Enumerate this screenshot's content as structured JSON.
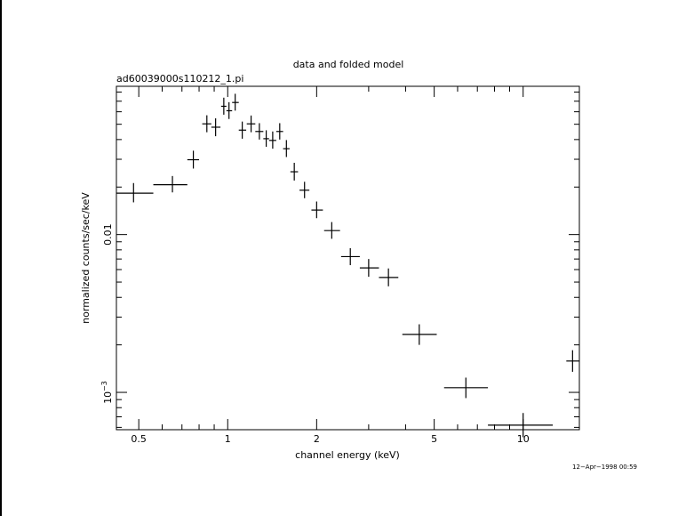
{
  "chart_data": {
    "type": "scatter",
    "title": "data and folded model",
    "subtitle": "ad60039000s110212_1.pi",
    "xlabel": "channel energy (keV)",
    "ylabel": "normalized counts/sec/keV",
    "x_scale": "log",
    "y_scale": "log",
    "xlim": [
      0.42,
      15.5
    ],
    "ylim": [
      0.00058,
      0.087
    ],
    "x_ticklabels": [
      "0.5",
      "1",
      "2",
      "5",
      "10"
    ],
    "x_tickvalues": [
      0.5,
      1,
      2,
      5,
      10
    ],
    "y_ticklabels": [
      {
        "base": "0.01",
        "exp": "",
        "value": 0.01
      },
      {
        "base": "10",
        "exp": "−3",
        "value": 0.001
      }
    ],
    "points": [
      {
        "x": 0.48,
        "xlo": 0.42,
        "xhi": 0.56,
        "y": 0.0183,
        "ylo": 0.016,
        "yhi": 0.0212
      },
      {
        "x": 0.65,
        "xlo": 0.56,
        "xhi": 0.73,
        "y": 0.0207,
        "ylo": 0.0185,
        "yhi": 0.0235
      },
      {
        "x": 0.765,
        "xlo": 0.73,
        "xhi": 0.8,
        "y": 0.0298,
        "ylo": 0.0262,
        "yhi": 0.034
      },
      {
        "x": 0.85,
        "xlo": 0.82,
        "xhi": 0.88,
        "y": 0.0503,
        "ylo": 0.0445,
        "yhi": 0.057
      },
      {
        "x": 0.91,
        "xlo": 0.88,
        "xhi": 0.945,
        "y": 0.0479,
        "ylo": 0.042,
        "yhi": 0.0545
      },
      {
        "x": 0.97,
        "xlo": 0.95,
        "xhi": 0.99,
        "y": 0.065,
        "ylo": 0.0575,
        "yhi": 0.0737
      },
      {
        "x": 1.01,
        "xlo": 0.99,
        "xhi": 1.035,
        "y": 0.0609,
        "ylo": 0.054,
        "yhi": 0.069
      },
      {
        "x": 1.06,
        "xlo": 1.035,
        "xhi": 1.09,
        "y": 0.0687,
        "ylo": 0.061,
        "yhi": 0.078
      },
      {
        "x": 1.12,
        "xlo": 1.09,
        "xhi": 1.155,
        "y": 0.0459,
        "ylo": 0.0405,
        "yhi": 0.052
      },
      {
        "x": 1.2,
        "xlo": 1.16,
        "xhi": 1.24,
        "y": 0.0503,
        "ylo": 0.0445,
        "yhi": 0.0568
      },
      {
        "x": 1.28,
        "xlo": 1.24,
        "xhi": 1.32,
        "y": 0.045,
        "ylo": 0.04,
        "yhi": 0.0508
      },
      {
        "x": 1.35,
        "xlo": 1.32,
        "xhi": 1.38,
        "y": 0.0405,
        "ylo": 0.036,
        "yhi": 0.0458
      },
      {
        "x": 1.42,
        "xlo": 1.38,
        "xhi": 1.46,
        "y": 0.0395,
        "ylo": 0.035,
        "yhi": 0.045
      },
      {
        "x": 1.5,
        "xlo": 1.46,
        "xhi": 1.54,
        "y": 0.045,
        "ylo": 0.04,
        "yhi": 0.0508
      },
      {
        "x": 1.58,
        "xlo": 1.54,
        "xhi": 1.62,
        "y": 0.035,
        "ylo": 0.031,
        "yhi": 0.0397
      },
      {
        "x": 1.68,
        "xlo": 1.63,
        "xhi": 1.73,
        "y": 0.025,
        "ylo": 0.022,
        "yhi": 0.0285
      },
      {
        "x": 1.82,
        "xlo": 1.75,
        "xhi": 1.89,
        "y": 0.0191,
        "ylo": 0.017,
        "yhi": 0.0216
      },
      {
        "x": 2.0,
        "xlo": 1.92,
        "xhi": 2.1,
        "y": 0.0143,
        "ylo": 0.0127,
        "yhi": 0.0162
      },
      {
        "x": 2.25,
        "xlo": 2.12,
        "xhi": 2.4,
        "y": 0.0106,
        "ylo": 0.0094,
        "yhi": 0.012
      },
      {
        "x": 2.6,
        "xlo": 2.42,
        "xhi": 2.8,
        "y": 0.00725,
        "ylo": 0.0064,
        "yhi": 0.0082
      },
      {
        "x": 3.0,
        "xlo": 2.8,
        "xhi": 3.25,
        "y": 0.00615,
        "ylo": 0.0054,
        "yhi": 0.007
      },
      {
        "x": 3.5,
        "xlo": 3.25,
        "xhi": 3.78,
        "y": 0.00535,
        "ylo": 0.0047,
        "yhi": 0.0061
      },
      {
        "x": 4.45,
        "xlo": 3.9,
        "xhi": 5.1,
        "y": 0.00233,
        "ylo": 0.002,
        "yhi": 0.0027
      },
      {
        "x": 6.4,
        "xlo": 5.4,
        "xhi": 7.6,
        "y": 0.00107,
        "ylo": 0.00092,
        "yhi": 0.00124
      },
      {
        "x": 10.0,
        "xlo": 7.6,
        "xhi": 12.6,
        "y": 0.00062,
        "ylo": 0.00052,
        "yhi": 0.00074
      },
      {
        "x": 14.7,
        "xlo": 14.0,
        "xhi": 15.5,
        "y": 0.00158,
        "ylo": 0.00135,
        "yhi": 0.00185
      }
    ],
    "grid": false,
    "legend": "none"
  },
  "timestamp": "12−Apr−1998 00:59"
}
